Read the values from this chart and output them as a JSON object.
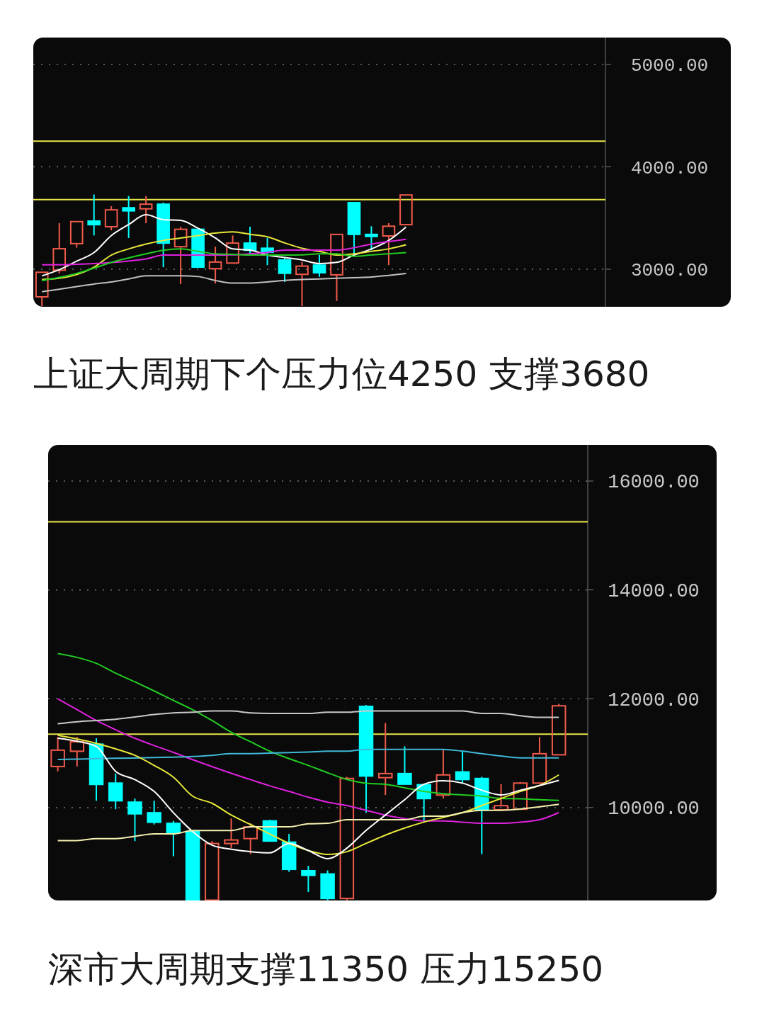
{
  "chart_data": [
    {
      "type": "candlestick",
      "title": "上证大周期下个压力位4250 支撑3680",
      "categories": [
        null,
        null,
        null,
        null,
        null,
        null,
        null,
        null,
        null,
        null,
        null,
        null,
        null,
        null,
        null,
        null,
        null,
        null,
        null,
        null,
        null,
        null,
        null,
        null,
        null,
        null,
        null,
        null,
        null,
        null,
        null,
        null,
        null
      ],
      "ohlc": [
        [
          2730,
          2970,
          2640,
          2970
        ],
        [
          2990,
          3450,
          2960,
          3200
        ],
        [
          3250,
          3465,
          3210,
          3465
        ],
        [
          3470,
          3730,
          3330,
          3435
        ],
        [
          3415,
          3615,
          3380,
          3580
        ],
        [
          3600,
          3715,
          3305,
          3570
        ],
        [
          3590,
          3715,
          3450,
          3635
        ],
        [
          3635,
          3650,
          3020,
          3255
        ],
        [
          3220,
          3415,
          2855,
          3390
        ],
        [
          3390,
          3390,
          3020,
          3020
        ],
        [
          3005,
          3220,
          2860,
          3070
        ],
        [
          3060,
          3330,
          3060,
          3255
        ],
        [
          3255,
          3415,
          3140,
          3185
        ],
        [
          3205,
          3305,
          3040,
          3165
        ],
        [
          3090,
          3120,
          2875,
          2960
        ],
        [
          2950,
          3070,
          2640,
          3030
        ],
        [
          3040,
          3140,
          2925,
          2965
        ],
        [
          2945,
          3340,
          2690,
          3340
        ],
        [
          3650,
          3655,
          3150,
          3340
        ],
        [
          3340,
          3420,
          3185,
          3320
        ],
        [
          3325,
          3450,
          3040,
          3420
        ],
        [
          3435,
          3725,
          3435,
          3725
        ],
        null,
        null,
        null,
        null,
        null,
        null,
        null,
        null,
        null,
        null,
        null
      ],
      "series": [
        {
          "type": "line",
          "color": "#ffffff",
          "values": [
            2935,
            2995,
            3078,
            3162,
            3329,
            3436,
            3532,
            3484,
            3477,
            3400,
            3305,
            3198,
            3186,
            3138,
            3114,
            3090,
            3055,
            3067,
            3138,
            3198,
            3281,
            3412,
            null,
            null,
            null,
            null,
            null,
            null,
            null,
            null,
            null,
            null,
            null
          ]
        },
        {
          "type": "line",
          "color": "#e6e63c",
          "values": [
            2900,
            2911,
            2947,
            3019,
            3138,
            3198,
            3245,
            3281,
            3305,
            3329,
            3353,
            3365,
            3341,
            3317,
            3257,
            3205,
            3174,
            3138,
            3150,
            3174,
            3198,
            3238,
            null,
            null,
            null,
            null,
            null,
            null,
            null,
            null,
            null,
            null,
            null
          ]
        },
        {
          "type": "line",
          "color": "#dd22dd",
          "values": [
            3043,
            3043,
            3048,
            3055,
            3066,
            3080,
            3100,
            3138,
            3138,
            3138,
            3138,
            3140,
            3150,
            3165,
            3186,
            3186,
            3186,
            3186,
            3210,
            3245,
            3270,
            3293,
            null,
            null,
            null,
            null,
            null,
            null,
            null,
            null,
            null,
            null,
            null
          ]
        },
        {
          "type": "line",
          "color": "#22cc22",
          "values": [
            2887,
            2920,
            2959,
            3010,
            3066,
            3110,
            3150,
            3185,
            3198,
            3175,
            3150,
            3145,
            3138,
            3138,
            3138,
            3140,
            3150,
            3150,
            3126,
            3140,
            3150,
            3162,
            null,
            null,
            null,
            null,
            null,
            null,
            null,
            null,
            null,
            null,
            null
          ]
        },
        {
          "type": "line",
          "color": "#c0c0c0",
          "values": [
            2780,
            2805,
            2830,
            2855,
            2876,
            2905,
            2935,
            2935,
            2935,
            2928,
            2890,
            2864,
            2864,
            2876,
            2890,
            2900,
            2905,
            2911,
            2917,
            2923,
            2940,
            2959,
            null,
            null,
            null,
            null,
            null,
            null,
            null,
            null,
            null,
            null,
            null
          ]
        }
      ],
      "ylim": [
        2633,
        5263
      ],
      "yticks": [
        {
          "value": 3000,
          "label": "3000.00"
        },
        {
          "value": 4000,
          "label": "4000.00"
        },
        {
          "value": 5000,
          "label": "5000.00"
        }
      ],
      "grid": "y",
      "tick_labels": "y",
      "ref_lines": [
        {
          "axis": "y",
          "value": 4250,
          "color": "#e8e84a"
        },
        {
          "axis": "y",
          "value": 3680,
          "color": "#e8e84a"
        }
      ]
    },
    {
      "type": "candlestick",
      "title": "深市大周期支撑11350 压力15250",
      "categories": [
        null,
        null,
        null,
        null,
        null,
        null,
        null,
        null,
        null,
        null,
        null,
        null,
        null,
        null,
        null,
        null,
        null,
        null,
        null,
        null,
        null,
        null,
        null,
        null,
        null,
        null,
        null,
        null
      ],
      "ohlc": [
        [
          10755,
          11300,
          10665,
          11055
        ],
        [
          11035,
          11300,
          10755,
          11210
        ],
        [
          11165,
          11275,
          10125,
          10425
        ],
        [
          10450,
          10625,
          9970,
          10125
        ],
        [
          10100,
          10165,
          9385,
          9885
        ],
        [
          9905,
          10125,
          9690,
          9730
        ],
        [
          9710,
          9755,
          9105,
          9540
        ],
        [
          9560,
          9580,
          8300,
          8300
        ],
        [
          8300,
          9385,
          8300,
          9340
        ],
        [
          9340,
          9800,
          9255,
          9405
        ],
        [
          9430,
          9710,
          9145,
          9645
        ],
        [
          9755,
          9775,
          9385,
          9385
        ],
        [
          9365,
          9515,
          8820,
          8865
        ],
        [
          8840,
          8930,
          8450,
          8755
        ],
        [
          8780,
          8845,
          8300,
          8330
        ],
        [
          8330,
          10565,
          8300,
          10535
        ],
        [
          11860,
          11885,
          9905,
          10580
        ],
        [
          10550,
          11555,
          10230,
          10625
        ],
        [
          10625,
          11125,
          10430,
          10430
        ],
        [
          10420,
          10430,
          9735,
          10165
        ],
        [
          10230,
          11055,
          10165,
          10600
        ],
        [
          10655,
          11035,
          10450,
          10515
        ],
        [
          10535,
          10565,
          9145,
          9950
        ],
        [
          9960,
          10430,
          9950,
          10035
        ],
        [
          9970,
          10470,
          9970,
          10450
        ],
        [
          10450,
          11295,
          10450,
          10990
        ],
        [
          10970,
          11905,
          10970,
          11870
        ],
        null
      ],
      "series": [
        {
          "type": "line",
          "color": "#22cc22",
          "values": [
            12830,
            12760,
            12650,
            12470,
            12310,
            12143,
            11970,
            11796,
            11600,
            11383,
            11210,
            11036,
            10900,
            10775,
            10640,
            10515,
            10449,
            10428,
            10363,
            10297,
            10254,
            10232,
            10211,
            10167,
            10160,
            10145,
            10132,
            null
          ]
        },
        {
          "type": "line",
          "color": "#dd22dd",
          "values": [
            12000,
            11800,
            11600,
            11430,
            11274,
            11140,
            11014,
            10880,
            10753,
            10630,
            10514,
            10400,
            10297,
            10190,
            10100,
            10037,
            9950,
            9863,
            9798,
            9755,
            9755,
            9733,
            9711,
            9711,
            9733,
            9776,
            9907,
            null
          ]
        },
        {
          "type": "line",
          "color": "#c8c8c8",
          "values": [
            11540,
            11578,
            11600,
            11622,
            11665,
            11709,
            11740,
            11752,
            11774,
            11774,
            11740,
            11730,
            11730,
            11730,
            11752,
            11752,
            11774,
            11774,
            11774,
            11774,
            11774,
            11774,
            11731,
            11731,
            11687,
            11657,
            11657,
            null
          ]
        },
        {
          "type": "line",
          "color": "#3fb8d8",
          "values": [
            10883,
            10890,
            10900,
            10905,
            10910,
            10920,
            10927,
            10940,
            10960,
            10992,
            10992,
            11000,
            11010,
            11020,
            11036,
            11036,
            11070,
            11070,
            11070,
            11070,
            11070,
            11036,
            10992,
            10949,
            10914,
            10914,
            10914,
            null
          ]
        },
        {
          "type": "line",
          "color": "#e6e63c",
          "values": [
            11330,
            11260,
            11180,
            11079,
            10960,
            10775,
            10558,
            10210,
            10080,
            9863,
            9689,
            9516,
            9342,
            9211,
            9140,
            9190,
            9342,
            9494,
            9624,
            9733,
            9820,
            9907,
            10037,
            10167,
            10297,
            10406,
            10601,
            null
          ]
        },
        {
          "type": "line",
          "color": "#ffffff",
          "values": [
            11274,
            11220,
            11122,
            10666,
            10514,
            10297,
            9906,
            9559,
            9310,
            9233,
            9190,
            9168,
            9342,
            9211,
            9060,
            9255,
            9581,
            9863,
            10145,
            10428,
            10493,
            10449,
            10319,
            10232,
            10319,
            10406,
            10500,
            null
          ]
        },
        {
          "type": "line",
          "color": "#f5f0b0",
          "values": [
            9394,
            9394,
            9429,
            9429,
            9472,
            9516,
            9516,
            9580,
            9580,
            9580,
            9646,
            9646,
            9646,
            9702,
            9711,
            9776,
            9776,
            9776,
            9776,
            9841,
            9841,
            9907,
            9950,
            9950,
            9972,
            10015,
            10059,
            null
          ]
        }
      ],
      "ylim": [
        8293,
        16664
      ],
      "yticks": [
        {
          "value": 10000,
          "label": "10000.00"
        },
        {
          "value": 12000,
          "label": "12000.00"
        },
        {
          "value": 14000,
          "label": "14000.00"
        },
        {
          "value": 16000,
          "label": "16000.00"
        }
      ],
      "grid": "y",
      "tick_labels": "y",
      "ref_lines": [
        {
          "axis": "y",
          "value": 15250,
          "color": "#e8e84a"
        },
        {
          "axis": "y",
          "value": 11350,
          "color": "#e8e84a"
        }
      ]
    }
  ]
}
